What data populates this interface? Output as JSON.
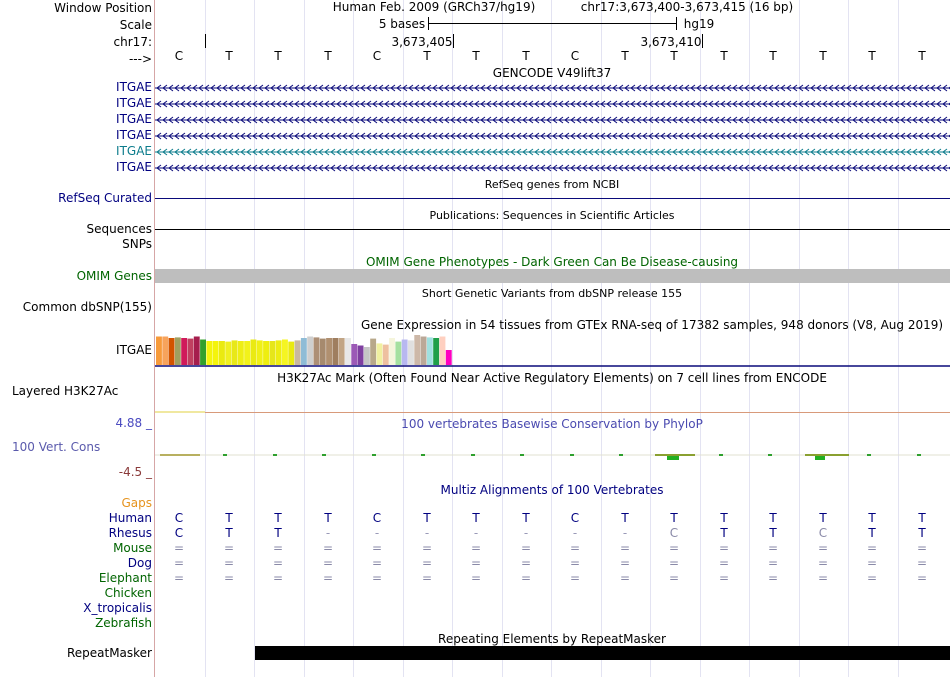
{
  "header": {
    "labels": {
      "window_position": "Window Position",
      "scale": "Scale",
      "chrom": "chr17:",
      "strand": "--->"
    },
    "assembly_text": "Human Feb. 2009 (GRCh37/hg19)",
    "position_text": "chr17:3,673,400-3,673,415 (16 bp)",
    "scale_text": "5 bases",
    "scale_db": "hg19",
    "coord_1": "3,673,405",
    "coord_2": "3,673,410"
  },
  "sequence": [
    "C",
    "T",
    "T",
    "T",
    "C",
    "T",
    "T",
    "T",
    "C",
    "T",
    "T",
    "T",
    "T",
    "T",
    "T",
    "T"
  ],
  "tracks": {
    "gencode_title": "GENCODE V49lift37",
    "gencode_labels": [
      "ITGAE",
      "ITGAE",
      "ITGAE",
      "ITGAE",
      "ITGAE",
      "ITGAE"
    ],
    "refseq_title": "RefSeq genes from NCBI",
    "refseq_label": "RefSeq Curated",
    "pubs_title": "Publications: Sequences in Scientific Articles",
    "sequences_label": "Sequences",
    "snps_label": "SNPs",
    "omim_title": "OMIM Gene Phenotypes - Dark Green Can Be Disease-causing",
    "omim_label": "OMIM Genes",
    "dbsnp_title": "Short Genetic Variants from dbSNP release 155",
    "dbsnp_label": "Common dbSNP(155)",
    "gtex_title": "Gene Expression in 54 tissues from GTEx RNA-seq of 17382 samples, 948 donors (V8, Aug 2019)",
    "gtex_label": "ITGAE",
    "h3k27_title": "H3K27Ac Mark (Often Found Near Active Regulatory Elements) on 7 cell lines from ENCODE",
    "h3k27_label": "Layered H3K27Ac",
    "cons_title": "100 vertebrates Basewise Conservation by PhyloP",
    "cons_label": "100 Vert. Cons",
    "cons_max": "4.88 _",
    "cons_min": "-4.5 _",
    "multiz_title": "Multiz Alignments of 100 Vertebrates",
    "gaps_label": "Gaps",
    "repeat_title": "Repeating Elements by RepeatMasker",
    "repeat_label": "RepeatMasker"
  },
  "gtex_colors": [
    "#f79a3a",
    "#f7a35c",
    "#d35400",
    "#a0a060",
    "#d01a5a",
    "#c04060",
    "#a51e4d",
    "#33a02c",
    "#f4f40c",
    "#f4f40c",
    "#eaea10",
    "#f0f020",
    "#e8e818",
    "#eeee14",
    "#f2f21a",
    "#eaea12",
    "#f0f016",
    "#eeee10",
    "#e6e61a",
    "#eded12",
    "#f5f522",
    "#e9e910",
    "#c9b8a0",
    "#8fbcd6",
    "#cfcfcf",
    "#ad8f76",
    "#a68a6e",
    "#b09070",
    "#9f7e5f",
    "#c2a585",
    "#e8e8e8",
    "#9b59b6",
    "#7f3fa0",
    "#c5c5c5",
    "#b8a88a",
    "#f0f0a0",
    "#eec0a0",
    "#f5f5dc",
    "#a5e0a0",
    "#b8b8f0",
    "#e0e0e0",
    "#cdb8a8",
    "#bba898",
    "#a0e0e0",
    "#1f9f4a",
    "#ffd0c0",
    "#ff00c0"
  ],
  "gtex_values": [
    0.95,
    0.95,
    0.9,
    0.92,
    0.9,
    0.88,
    0.95,
    0.85,
    0.8,
    0.8,
    0.8,
    0.78,
    0.82,
    0.8,
    0.8,
    0.85,
    0.82,
    0.8,
    0.8,
    0.82,
    0.85,
    0.78,
    0.82,
    0.9,
    0.95,
    0.92,
    0.88,
    0.9,
    0.9,
    0.9,
    0.9,
    0.7,
    0.65,
    0.6,
    0.88,
    0.72,
    0.68,
    0.9,
    0.78,
    0.85,
    0.82,
    1.0,
    0.95,
    0.92,
    0.9,
    0.95,
    0.5
  ],
  "alignments": [
    {
      "species": "Human",
      "color": "navy",
      "bases": [
        "C",
        "T",
        "T",
        "T",
        "C",
        "T",
        "T",
        "T",
        "C",
        "T",
        "T",
        "T",
        "T",
        "T",
        "T",
        "T"
      ]
    },
    {
      "species": "Rhesus",
      "color": "navy",
      "bases": [
        "C",
        "T",
        "T",
        "-",
        "-",
        "-",
        "-",
        "-",
        "-",
        "-",
        "C",
        "T",
        "T",
        "C",
        "T",
        "T"
      ]
    },
    {
      "species": "Mouse",
      "color": "green",
      "bases": [
        "=",
        "=",
        "=",
        "=",
        "=",
        "=",
        "=",
        "=",
        "=",
        "=",
        "=",
        "=",
        "=",
        "=",
        "=",
        "="
      ]
    },
    {
      "species": "Dog",
      "color": "navy",
      "bases": [
        "=",
        "=",
        "=",
        "=",
        "=",
        "=",
        "=",
        "=",
        "=",
        "=",
        "=",
        "=",
        "=",
        "=",
        "=",
        "="
      ]
    },
    {
      "species": "Elephant",
      "color": "green",
      "bases": [
        "=",
        "=",
        "=",
        "=",
        "=",
        "=",
        "=",
        "=",
        "=",
        "=",
        "=",
        "=",
        "=",
        "=",
        "=",
        "="
      ]
    },
    {
      "species": "Chicken",
      "color": "green",
      "bases": []
    },
    {
      "species": "X_tropicalis",
      "color": "navy",
      "bases": []
    },
    {
      "species": "Zebrafish",
      "color": "green",
      "bases": []
    }
  ],
  "colors": {
    "gene_navy": "#0a0a7a",
    "gene_teal": "#0c7c8c",
    "omim_gray": "#bebebe",
    "repeat_black": "#000000"
  }
}
